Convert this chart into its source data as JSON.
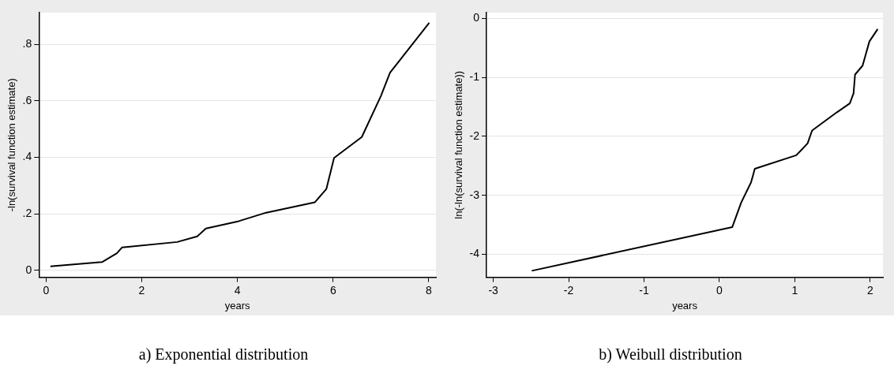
{
  "chart_data": [
    {
      "type": "line",
      "title": "a) Exponential distribution",
      "xlabel": "years",
      "ylabel": "-ln(survival function estimate)",
      "grid": "y",
      "xlim": [
        -0.15,
        8.15
      ],
      "ylim": [
        -0.025,
        0.913
      ],
      "xticks": [
        0,
        2,
        4,
        6,
        8
      ],
      "yticks": [
        0,
        {
          "value": 0.2,
          "label": ".2"
        },
        {
          "value": 0.4,
          "label": ".4"
        },
        {
          "value": 0.6,
          "label": ".6"
        },
        {
          "value": 0.8,
          "label": ".8"
        }
      ],
      "series": [
        {
          "color": "#000000",
          "x": [
            0.09,
            1.17,
            1.48,
            1.59,
            2.74,
            3.16,
            3.34,
            4.03,
            4.6,
            5.62,
            5.86,
            6.02,
            6.6,
            7.0,
            7.19,
            8.01
          ],
          "values": [
            0.014,
            0.029,
            0.06,
            0.081,
            0.1,
            0.12,
            0.148,
            0.174,
            0.204,
            0.241,
            0.288,
            0.398,
            0.472,
            0.618,
            0.7,
            0.877
          ]
        }
      ]
    },
    {
      "type": "line",
      "title": "b) Weibull distribution",
      "xlabel": "years",
      "ylabel": "ln(-ln(survival function estimate))",
      "grid": "y",
      "xlim": [
        -3.09,
        2.17
      ],
      "ylim": [
        -4.39,
        0.1
      ],
      "xticks": [
        -3,
        -2,
        -1,
        0,
        1,
        2
      ],
      "yticks": [
        -4,
        -3,
        -2,
        -1,
        0
      ],
      "series": [
        {
          "color": "#000000",
          "x": [
            -2.49,
            0.17,
            0.29,
            0.42,
            0.47,
            1.02,
            1.17,
            1.23,
            1.56,
            1.73,
            1.78,
            1.8,
            1.9,
            1.99,
            2.1
          ],
          "values": [
            -4.28,
            -3.54,
            -3.12,
            -2.78,
            -2.55,
            -2.32,
            -2.12,
            -1.9,
            -1.59,
            -1.44,
            -1.27,
            -0.95,
            -0.8,
            -0.39,
            -0.18
          ]
        }
      ]
    }
  ]
}
